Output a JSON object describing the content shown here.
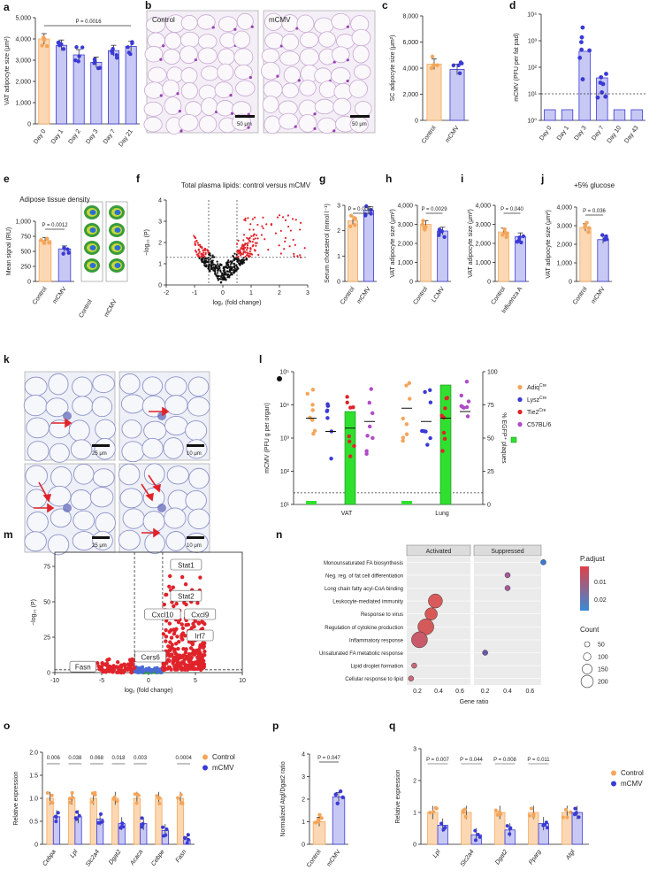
{
  "figure": {
    "panel_labels": [
      "a",
      "b",
      "c",
      "d",
      "e",
      "f",
      "g",
      "h",
      "i",
      "j",
      "k",
      "l",
      "m",
      "n",
      "o",
      "p",
      "q"
    ],
    "colors": {
      "control": "#f5a55a",
      "control_fill": "#fbd8b3",
      "mcmv": "#3a3ad6",
      "mcmv_fill": "#c8c8f4",
      "red": "#e0232a",
      "green": "#2fe02f",
      "purple": "#b04ac8"
    },
    "micrographs": {
      "b": {
        "labels": [
          "Control",
          "mCMV"
        ],
        "scales": [
          "50 μm",
          "50 μm"
        ]
      },
      "e": {
        "groups": [
          "Control",
          "mCMV"
        ]
      },
      "k": {
        "scales": [
          "25 μm",
          "10 μm",
          "25 μm",
          "10 μm"
        ]
      }
    }
  },
  "chart_data": [
    {
      "panel": "a",
      "type": "bar",
      "ylabel": "VAT adipocyte size (μm²)",
      "ylim": [
        0,
        5000
      ],
      "yticks": [
        "0",
        "1,000",
        "2,000",
        "3,000",
        "4,000",
        "5,000"
      ],
      "categories": [
        "Day 0",
        "Day 1",
        "Day 2",
        "Day 3",
        "Day 7",
        "Day 21"
      ],
      "values": [
        4000,
        3700,
        3250,
        2900,
        3450,
        3650
      ],
      "annotation": "P = 0.0016"
    },
    {
      "panel": "c",
      "type": "bar",
      "ylabel": "SC adipocyte size (μm²)",
      "ylim": [
        0,
        8000
      ],
      "yticks": [
        "0",
        "2,000",
        "4,000",
        "6,000",
        "8,000"
      ],
      "categories": [
        "Control",
        "mCMV"
      ],
      "values": [
        4300,
        3900
      ]
    },
    {
      "panel": "d",
      "type": "bar",
      "ylabel": "mCMV (PFU per fat pad)",
      "yticks": [
        "10⁰",
        "10¹",
        "10²",
        "10³",
        "10⁴"
      ],
      "ylim_log": [
        0,
        4
      ],
      "categories": [
        "Day 0",
        "Day 1",
        "Day 3",
        "Day 7",
        "Day 10",
        "Day 43"
      ],
      "values_log": [
        0.4,
        0.4,
        2.6,
        1.6,
        0.4,
        0.4
      ],
      "threshold_log": 1
    },
    {
      "panel": "e",
      "type": "bar",
      "title": "Adipose tissue density",
      "ylabel": "Mean signal (RU)",
      "ylim": [
        0,
        1000
      ],
      "yticks": [
        "0",
        "250",
        "500",
        "750",
        "1,000"
      ],
      "categories": [
        "Control",
        "mCMV"
      ],
      "values": [
        680,
        540
      ],
      "annotation": "P = 0.0012"
    },
    {
      "panel": "f",
      "type": "scatter",
      "title": "Total plasma lipids: control versus mCMV",
      "xlabel": "log₂ (fold change)",
      "ylabel": "−log₁₀ (P)",
      "xlim": [
        -2,
        3
      ],
      "ylim": [
        0,
        4
      ],
      "xticks": [
        "-2",
        "-1",
        "0",
        "1",
        "2",
        "3"
      ],
      "yticks": [
        "0",
        "1",
        "2",
        "3",
        "4"
      ]
    },
    {
      "panel": "g",
      "type": "bar",
      "ylabel": "Serum cholesterol (mmol l⁻¹)",
      "ylim": [
        0,
        3
      ],
      "yticks": [
        "0",
        "1",
        "2",
        "3"
      ],
      "categories": [
        "Control",
        "mCMV"
      ],
      "values": [
        2.4,
        2.8
      ],
      "annotation": "P = 0.0007"
    },
    {
      "panel": "h",
      "type": "bar",
      "ylabel": "VAT adipocyte size (μm²)",
      "ylim": [
        0,
        4000
      ],
      "yticks": [
        "0",
        "1,000",
        "2,000",
        "3,000",
        "4,000"
      ],
      "categories": [
        "Control",
        "LCMV"
      ],
      "values": [
        3000,
        2650
      ],
      "annotation": "P = 0.0029"
    },
    {
      "panel": "i",
      "type": "bar",
      "ylabel": "VAT adipocyte size (μm²)",
      "ylim": [
        0,
        4000
      ],
      "yticks": [
        "0",
        "1,000",
        "2,000",
        "3,000",
        "4,000"
      ],
      "categories": [
        "Control",
        "Influenza A"
      ],
      "values": [
        2600,
        2350
      ],
      "annotation": "P = 0.040"
    },
    {
      "panel": "j",
      "type": "bar",
      "title": "+5% glucose",
      "ylabel": "VAT adipocyte size (μm²)",
      "ylim": [
        0,
        4000
      ],
      "yticks": [
        "0",
        "1,000",
        "2,000",
        "3,000",
        "4,000"
      ],
      "categories": [
        "Control",
        "mCMV"
      ],
      "values": [
        2900,
        2250
      ],
      "annotation": "P = 0.036"
    },
    {
      "panel": "l",
      "type": "scatter",
      "ylabel": "mCMV (PFU g per organ)",
      "y2label": "% EGFP⁺ plaques",
      "yticks": [
        "10¹",
        "10²",
        "10³",
        "10⁴",
        "10⁵"
      ],
      "y2ticks": [
        "0",
        "25",
        "50",
        "75",
        "100"
      ],
      "groups": [
        "VAT",
        "Lung"
      ],
      "legend": [
        {
          "label": "Adiq",
          "sup": "Cre",
          "color": "#f5a55a"
        },
        {
          "label": "Lysz",
          "sup": "Cre",
          "color": "#3a3ad6"
        },
        {
          "label": "Tie2",
          "sup": "Cre",
          "color": "#e0232a"
        },
        {
          "label": "C57BL/6",
          "sup": "",
          "color": "#b04ac8"
        }
      ],
      "green_bar_percent": [
        70,
        90
      ]
    },
    {
      "panel": "m",
      "type": "scatter",
      "xlabel": "log₂ (fold change)",
      "ylabel": "−log₁₀ (P)",
      "xlim": [
        -10,
        10
      ],
      "ylim": [
        0,
        85
      ],
      "xticks": [
        "-10",
        "-5",
        "0",
        "5",
        "10"
      ],
      "yticks": [
        "0",
        "25",
        "50",
        "75"
      ],
      "genes": [
        "Stat1",
        "Stat2",
        "Cxcl10",
        "Cxcl9",
        "Irf7",
        "Cers6",
        "Fasn"
      ]
    },
    {
      "panel": "n",
      "type": "scatter",
      "facets": [
        "Activated",
        "Suppressed"
      ],
      "xlabel": "Gene ratio",
      "xticks_left": [
        "0.2",
        "0.4",
        "0.6"
      ],
      "xticks_right": [
        "0.2",
        "0.4",
        "0.6"
      ],
      "terms": [
        "Monounsaturated FA biosynthesis",
        "Neg. reg. of fat cell differentiation",
        "Long chain fatty acyl-CoA binding",
        "Leukocyte-mediated immunity",
        "Response to virus",
        "Regulation of cytokine production",
        "Inflammatory response",
        "Unsaturated FA metabolic response",
        "Lipid droplet formation",
        "Cellular response to lipid"
      ],
      "legend_title": "P.adjust",
      "legend_ticks": [
        "0.01",
        "0.02"
      ],
      "count_title": "Count",
      "count_ticks": [
        "50",
        "100",
        "150",
        "200"
      ]
    },
    {
      "panel": "o",
      "type": "bar",
      "ylabel": "Relative expression",
      "ylim": [
        0,
        2
      ],
      "yticks": [
        "0",
        "0.5",
        "1.0",
        "1.5",
        "2.0"
      ],
      "categories": [
        "Cebpa",
        "Lpl",
        "Slc2a4",
        "Dgat2",
        "Acaca",
        "Cebpe",
        "Fasn"
      ],
      "series": [
        {
          "name": "Control",
          "values": [
            1.0,
            1.0,
            1.0,
            1.0,
            1.0,
            1.0,
            1.0
          ]
        },
        {
          "name": "mCMV",
          "values": [
            0.6,
            0.6,
            0.55,
            0.45,
            0.45,
            0.3,
            0.1
          ]
        }
      ],
      "p_values": [
        "0.006",
        "0.038",
        "0.068",
        "0.018",
        "0.003",
        "",
        "0.0004"
      ]
    },
    {
      "panel": "p",
      "type": "bar",
      "ylabel": "Normalized Atgl/Dgat2 ratio",
      "ylim": [
        0,
        4
      ],
      "yticks": [
        "0",
        "1",
        "2",
        "3",
        "4"
      ],
      "categories": [
        "Control",
        "mCMV"
      ],
      "values": [
        1.0,
        2.1
      ],
      "annotation": "P = 0.047"
    },
    {
      "panel": "q",
      "type": "bar",
      "ylabel": "Relative expression",
      "ylim": [
        0,
        3
      ],
      "yticks": [
        "0",
        "1",
        "2",
        "3"
      ],
      "categories": [
        "Lpl",
        "Slc2a4",
        "Dgat2",
        "Pparg",
        "Atgl"
      ],
      "series": [
        {
          "name": "Control",
          "values": [
            1.0,
            1.0,
            1.0,
            1.0,
            1.0
          ]
        },
        {
          "name": "mCMV",
          "values": [
            0.6,
            0.3,
            0.45,
            0.65,
            1.0
          ]
        }
      ],
      "p_values": [
        "P = 0.007",
        "P = 0.044",
        "P = 0.008",
        "P = 0.011",
        ""
      ]
    }
  ]
}
